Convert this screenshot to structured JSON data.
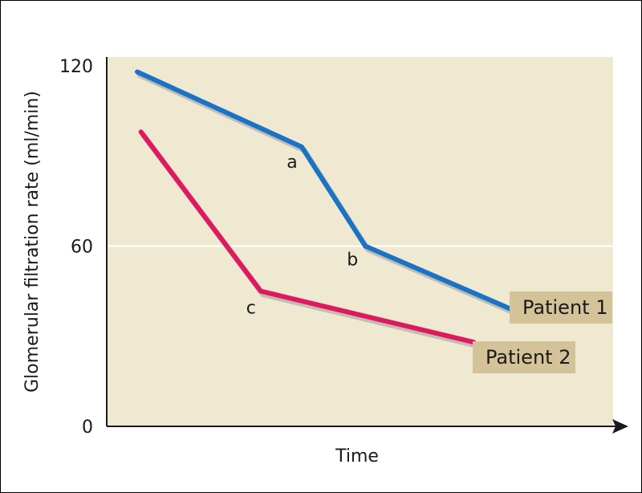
{
  "chart_data": {
    "type": "line",
    "title": "",
    "xlabel": "Time",
    "ylabel": "Glomerular filtration rate (ml/min)",
    "ylim": [
      0,
      120
    ],
    "yticks": [
      0,
      60,
      120
    ],
    "grid": "horizontal line at 60",
    "series": [
      {
        "name": "Patient 1",
        "color": "#1a73c7",
        "x": [
          0.0,
          0.44,
          0.61,
          1.0
        ],
        "values": [
          118,
          93,
          60,
          39
        ]
      },
      {
        "name": "Patient 2",
        "color": "#e0195f",
        "x": [
          0.01,
          0.33,
          0.9
        ],
        "values": [
          98,
          45,
          28
        ]
      }
    ],
    "annotations": [
      {
        "text": "a",
        "series": 0,
        "point": 1
      },
      {
        "text": "b",
        "series": 0,
        "point": 2
      },
      {
        "text": "c",
        "series": 1,
        "point": 1
      }
    ],
    "colors": {
      "plot_background": "#efe9d2",
      "label_background": "#d4c399"
    }
  }
}
